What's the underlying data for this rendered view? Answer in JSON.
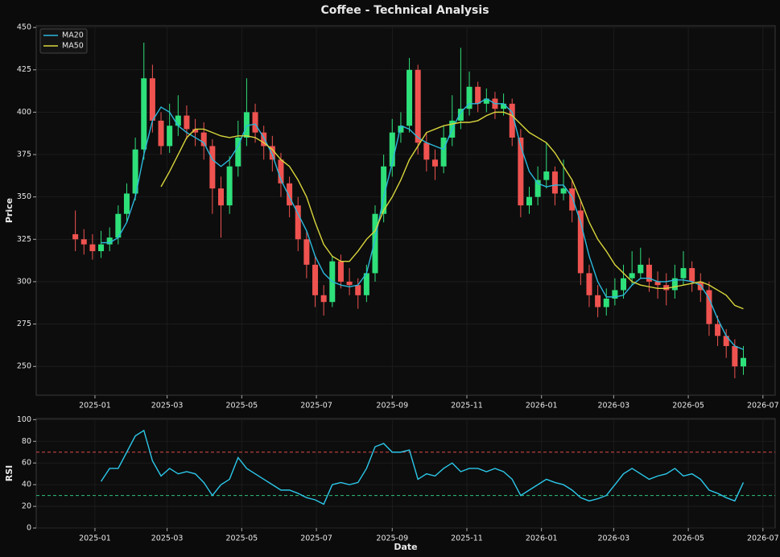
{
  "title": "Coffee - Technical Analysis",
  "chart_data": [
    {
      "type": "candlestick",
      "ylabel": "Price",
      "x": [
        "2024-12-16",
        "2024-12-23",
        "2024-12-30",
        "2025-01-06",
        "2025-01-13",
        "2025-01-20",
        "2025-01-27",
        "2025-02-03",
        "2025-02-10",
        "2025-02-17",
        "2025-02-24",
        "2025-03-03",
        "2025-03-10",
        "2025-03-17",
        "2025-03-24",
        "2025-03-31",
        "2025-04-07",
        "2025-04-14",
        "2025-04-21",
        "2025-04-28",
        "2025-05-05",
        "2025-05-12",
        "2025-05-19",
        "2025-05-26",
        "2025-06-02",
        "2025-06-09",
        "2025-06-16",
        "2025-06-23",
        "2025-06-30",
        "2025-07-07",
        "2025-07-14",
        "2025-07-21",
        "2025-07-28",
        "2025-08-04",
        "2025-08-11",
        "2025-08-18",
        "2025-08-25",
        "2025-09-01",
        "2025-09-08",
        "2025-09-15",
        "2025-09-22",
        "2025-09-29",
        "2025-10-06",
        "2025-10-13",
        "2025-10-20",
        "2025-10-27",
        "2025-11-03",
        "2025-11-10",
        "2025-11-17",
        "2025-11-24",
        "2025-12-01",
        "2025-12-08",
        "2025-12-15",
        "2025-12-22",
        "2025-12-29",
        "2026-01-05",
        "2026-01-12",
        "2026-01-19",
        "2026-01-26",
        "2026-02-02",
        "2026-02-09",
        "2026-02-16",
        "2026-02-23",
        "2026-03-02",
        "2026-03-09",
        "2026-03-16",
        "2026-03-23",
        "2026-03-30",
        "2026-04-06",
        "2026-04-13",
        "2026-04-20",
        "2026-04-27",
        "2026-05-04",
        "2026-05-11",
        "2026-05-18",
        "2026-05-25",
        "2026-06-01",
        "2026-06-08",
        "2026-06-15"
      ],
      "open": [
        328,
        325,
        322,
        318,
        322,
        326,
        340,
        352,
        378,
        420,
        395,
        380,
        392,
        398,
        390,
        388,
        380,
        355,
        345,
        368,
        385,
        400,
        388,
        380,
        372,
        358,
        345,
        325,
        310,
        292,
        288,
        312,
        300,
        298,
        292,
        305,
        340,
        368,
        388,
        392,
        425,
        382,
        372,
        368,
        385,
        395,
        402,
        415,
        405,
        408,
        402,
        405,
        385,
        345,
        350,
        360,
        365,
        352,
        355,
        342,
        305,
        292,
        285,
        290,
        295,
        302,
        305,
        310,
        300,
        298,
        295,
        302,
        308,
        300,
        295,
        275,
        268,
        262,
        250
      ],
      "high": [
        342,
        331,
        328,
        330,
        332,
        345,
        358,
        385,
        441,
        428,
        400,
        405,
        410,
        404,
        396,
        394,
        384,
        362,
        374,
        395,
        420,
        405,
        392,
        386,
        376,
        362,
        350,
        330,
        315,
        298,
        315,
        316,
        308,
        302,
        310,
        345,
        375,
        396,
        400,
        432,
        428,
        388,
        378,
        392,
        410,
        438,
        424,
        418,
        414,
        412,
        411,
        408,
        390,
        356,
        368,
        382,
        368,
        372,
        360,
        348,
        310,
        298,
        296,
        302,
        310,
        318,
        320,
        314,
        306,
        305,
        310,
        318,
        312,
        305,
        300,
        280,
        272,
        266,
        262
      ],
      "low": [
        318,
        316,
        313,
        314,
        318,
        322,
        335,
        348,
        372,
        388,
        375,
        376,
        386,
        384,
        380,
        372,
        340,
        326,
        340,
        362,
        380,
        382,
        372,
        365,
        350,
        338,
        318,
        302,
        285,
        280,
        285,
        296,
        292,
        284,
        288,
        300,
        335,
        362,
        382,
        388,
        375,
        365,
        360,
        364,
        380,
        390,
        398,
        400,
        400,
        396,
        398,
        380,
        338,
        340,
        345,
        355,
        345,
        348,
        335,
        298,
        285,
        279,
        280,
        286,
        290,
        298,
        302,
        294,
        290,
        286,
        290,
        298,
        294,
        288,
        268,
        262,
        255,
        243,
        245
      ],
      "close": [
        325,
        322,
        318,
        322,
        326,
        340,
        352,
        378,
        420,
        395,
        380,
        392,
        398,
        390,
        388,
        380,
        355,
        345,
        368,
        385,
        400,
        388,
        380,
        372,
        358,
        345,
        325,
        310,
        292,
        288,
        312,
        300,
        298,
        292,
        305,
        340,
        368,
        388,
        392,
        425,
        382,
        372,
        368,
        385,
        395,
        402,
        415,
        405,
        408,
        402,
        405,
        385,
        345,
        350,
        360,
        365,
        352,
        355,
        342,
        305,
        292,
        285,
        290,
        295,
        302,
        305,
        310,
        300,
        298,
        295,
        302,
        308,
        300,
        295,
        275,
        268,
        262,
        250,
        255
      ],
      "up_color": "#2ee07a",
      "down_color": "#ef5350",
      "series": [
        {
          "name": "MA20",
          "color": "#2bb8dc",
          "values": [
            null,
            null,
            null,
            323,
            323,
            326,
            335,
            350,
            375,
            395,
            403,
            400,
            392,
            388,
            385,
            382,
            372,
            368,
            372,
            380,
            392,
            393,
            385,
            375,
            360,
            350,
            340,
            330,
            315,
            305,
            300,
            298,
            297,
            298,
            305,
            325,
            350,
            370,
            392,
            390,
            385,
            382,
            380,
            378,
            390,
            400,
            405,
            405,
            408,
            405,
            405,
            400,
            380,
            365,
            358,
            356,
            357,
            357,
            350,
            335,
            315,
            300,
            291,
            291,
            292,
            298,
            302,
            302,
            300,
            300,
            301,
            301,
            300,
            298,
            290,
            278,
            268,
            262,
            260
          ]
        },
        {
          "name": "MA50",
          "color": "#d9d63c",
          "values": [
            null,
            null,
            null,
            null,
            null,
            null,
            null,
            null,
            null,
            null,
            356,
            365,
            375,
            385,
            390,
            390,
            388,
            386,
            385,
            386,
            386,
            385,
            382,
            378,
            372,
            368,
            360,
            350,
            335,
            322,
            315,
            312,
            312,
            318,
            325,
            330,
            342,
            350,
            360,
            372,
            380,
            388,
            390,
            392,
            393,
            394,
            394,
            395,
            398,
            400,
            400,
            398,
            393,
            388,
            385,
            382,
            376,
            368,
            360,
            348,
            335,
            325,
            318,
            310,
            305,
            300,
            298,
            297,
            296,
            296,
            297,
            298,
            299,
            300,
            298,
            295,
            292,
            286,
            284
          ]
        }
      ],
      "legend": "upper left",
      "xlim": [
        "2024-11-14",
        "2026-07-11"
      ],
      "xticks": [
        "2025-01",
        "2025-03",
        "2025-05",
        "2025-07",
        "2025-09",
        "2025-11",
        "2026-01",
        "2026-03",
        "2026-05",
        "2026-07"
      ],
      "ylim": [
        233,
        451
      ],
      "yticks": [
        250,
        275,
        300,
        325,
        350,
        375,
        400,
        425,
        450
      ],
      "grid": true
    },
    {
      "type": "line",
      "ylabel": "RSI",
      "xlabel": "Date",
      "x": [
        "2024-12-16",
        "2024-12-23",
        "2024-12-30",
        "2025-01-06",
        "2025-01-13",
        "2025-01-20",
        "2025-01-27",
        "2025-02-03",
        "2025-02-10",
        "2025-02-17",
        "2025-02-24",
        "2025-03-03",
        "2025-03-10",
        "2025-03-17",
        "2025-03-24",
        "2025-03-31",
        "2025-04-07",
        "2025-04-14",
        "2025-04-21",
        "2025-04-28",
        "2025-05-05",
        "2025-05-12",
        "2025-05-19",
        "2025-05-26",
        "2025-06-02",
        "2025-06-09",
        "2025-06-16",
        "2025-06-23",
        "2025-06-30",
        "2025-07-07",
        "2025-07-14",
        "2025-07-21",
        "2025-07-28",
        "2025-08-04",
        "2025-08-11",
        "2025-08-18",
        "2025-08-25",
        "2025-09-01",
        "2025-09-08",
        "2025-09-15",
        "2025-09-22",
        "2025-09-29",
        "2025-10-06",
        "2025-10-13",
        "2025-10-20",
        "2025-10-27",
        "2025-11-03",
        "2025-11-10",
        "2025-11-17",
        "2025-11-24",
        "2025-12-01",
        "2025-12-08",
        "2025-12-15",
        "2025-12-22",
        "2025-12-29",
        "2026-01-05",
        "2026-01-12",
        "2026-01-19",
        "2026-01-26",
        "2026-02-02",
        "2026-02-09",
        "2026-02-16",
        "2026-02-23",
        "2026-03-02",
        "2026-03-09",
        "2026-03-16",
        "2026-03-23",
        "2026-03-30",
        "2026-04-06",
        "2026-04-13",
        "2026-04-20",
        "2026-04-27",
        "2026-05-04",
        "2026-05-11",
        "2026-05-18",
        "2026-05-25",
        "2026-06-01",
        "2026-06-08",
        "2026-06-15"
      ],
      "series": [
        {
          "name": "RSI",
          "color": "#2cc8ea",
          "values": [
            null,
            null,
            null,
            43,
            55,
            55,
            70,
            85,
            90,
            62,
            48,
            55,
            50,
            52,
            50,
            42,
            30,
            40,
            45,
            65,
            55,
            50,
            45,
            40,
            35,
            35,
            32,
            28,
            26,
            22,
            40,
            42,
            40,
            42,
            55,
            75,
            78,
            70,
            70,
            72,
            45,
            50,
            48,
            55,
            60,
            52,
            55,
            55,
            52,
            55,
            52,
            45,
            30,
            35,
            40,
            45,
            42,
            40,
            35,
            28,
            25,
            27,
            30,
            40,
            50,
            55,
            50,
            45,
            48,
            50,
            55,
            48,
            50,
            45,
            35,
            32,
            28,
            25,
            42
          ]
        }
      ],
      "overbought": {
        "value": 70,
        "color": "#e04848"
      },
      "oversold": {
        "value": 30,
        "color": "#2ec27e"
      },
      "xlim": [
        "2024-11-14",
        "2026-07-11"
      ],
      "xticks": [
        "2025-01",
        "2025-03",
        "2025-05",
        "2025-07",
        "2025-09",
        "2025-11",
        "2026-01",
        "2026-03",
        "2026-05",
        "2026-07"
      ],
      "ylim": [
        0,
        101
      ],
      "yticks": [
        0,
        20,
        40,
        60,
        80,
        100
      ],
      "grid": true
    }
  ]
}
